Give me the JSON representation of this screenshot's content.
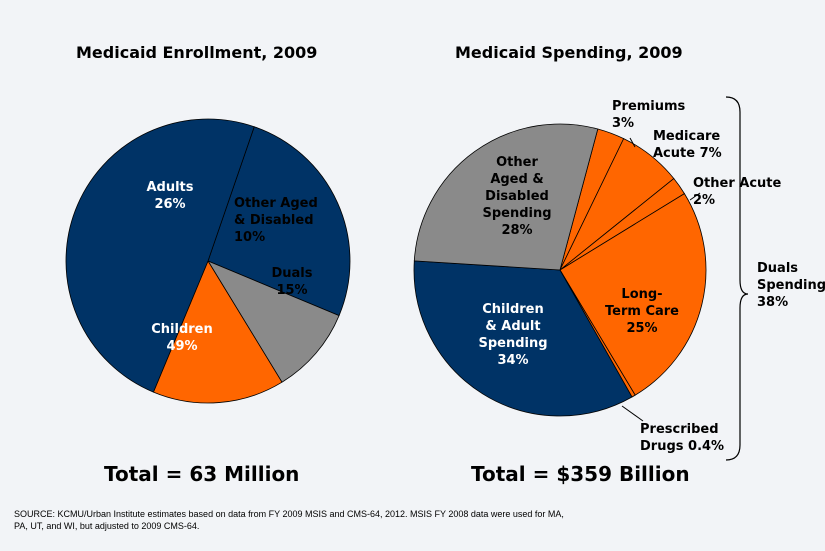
{
  "colors": {
    "navy": "#003366",
    "gray": "#8a8a8a",
    "orange": "#ff6600",
    "background": "#f2f4f7"
  },
  "chart_data": [
    {
      "type": "pie",
      "title": "Medicaid Enrollment, 2009",
      "total_label": "Total = 63 Million",
      "slices": [
        {
          "label": [
            "Adults",
            "26%"
          ],
          "value": 26,
          "color": "#003366",
          "text_color": "#ffffff"
        },
        {
          "label": [
            "Other Aged",
            "& Disabled",
            "10%"
          ],
          "value": 10,
          "color": "#8a8a8a",
          "text_color": "#000000"
        },
        {
          "label": [
            "Duals",
            "15%"
          ],
          "value": 15,
          "color": "#ff6600",
          "text_color": "#000000"
        },
        {
          "label": [
            "Children",
            "49%"
          ],
          "value": 49,
          "color": "#003366",
          "text_color": "#ffffff"
        }
      ]
    },
    {
      "type": "pie",
      "title": "Medicaid Spending, 2009",
      "total_label": "Total = $359 Billion",
      "slices": [
        {
          "label": [
            "Premiums",
            "3%"
          ],
          "value": 3,
          "color": "#ff6600",
          "text_color": "#000000"
        },
        {
          "label": [
            "Medicare",
            "Acute  7%"
          ],
          "value": 7,
          "color": "#ff6600",
          "text_color": "#000000"
        },
        {
          "label": [
            "Other Acute",
            "2%"
          ],
          "value": 2,
          "color": "#ff6600",
          "text_color": "#000000"
        },
        {
          "label": [
            "Long-",
            "Term Care",
            "25%"
          ],
          "value": 25,
          "color": "#ff6600",
          "text_color": "#000000"
        },
        {
          "label": [
            "Prescribed",
            "Drugs  0.4%"
          ],
          "value": 0.4,
          "color": "#ff6600",
          "text_color": "#000000"
        },
        {
          "label": [
            "Children",
            "& Adult",
            "Spending",
            "34%"
          ],
          "value": 34,
          "color": "#003366",
          "text_color": "#ffffff"
        },
        {
          "label": [
            "Other",
            "Aged &",
            "Disabled",
            "Spending",
            "28%"
          ],
          "value": 28,
          "color": "#8a8a8a",
          "text_color": "#000000"
        }
      ],
      "bracket_label": [
        "Duals",
        "Spending",
        "38%"
      ]
    }
  ],
  "source_note": "SOURCE:  KCMU/Urban Institute estimates based on data from FY 2009 MSIS and CMS-64, 2012. MSIS FY 2008 data were used for MA, PA, UT, and WI, but adjusted to 2009 CMS-64."
}
